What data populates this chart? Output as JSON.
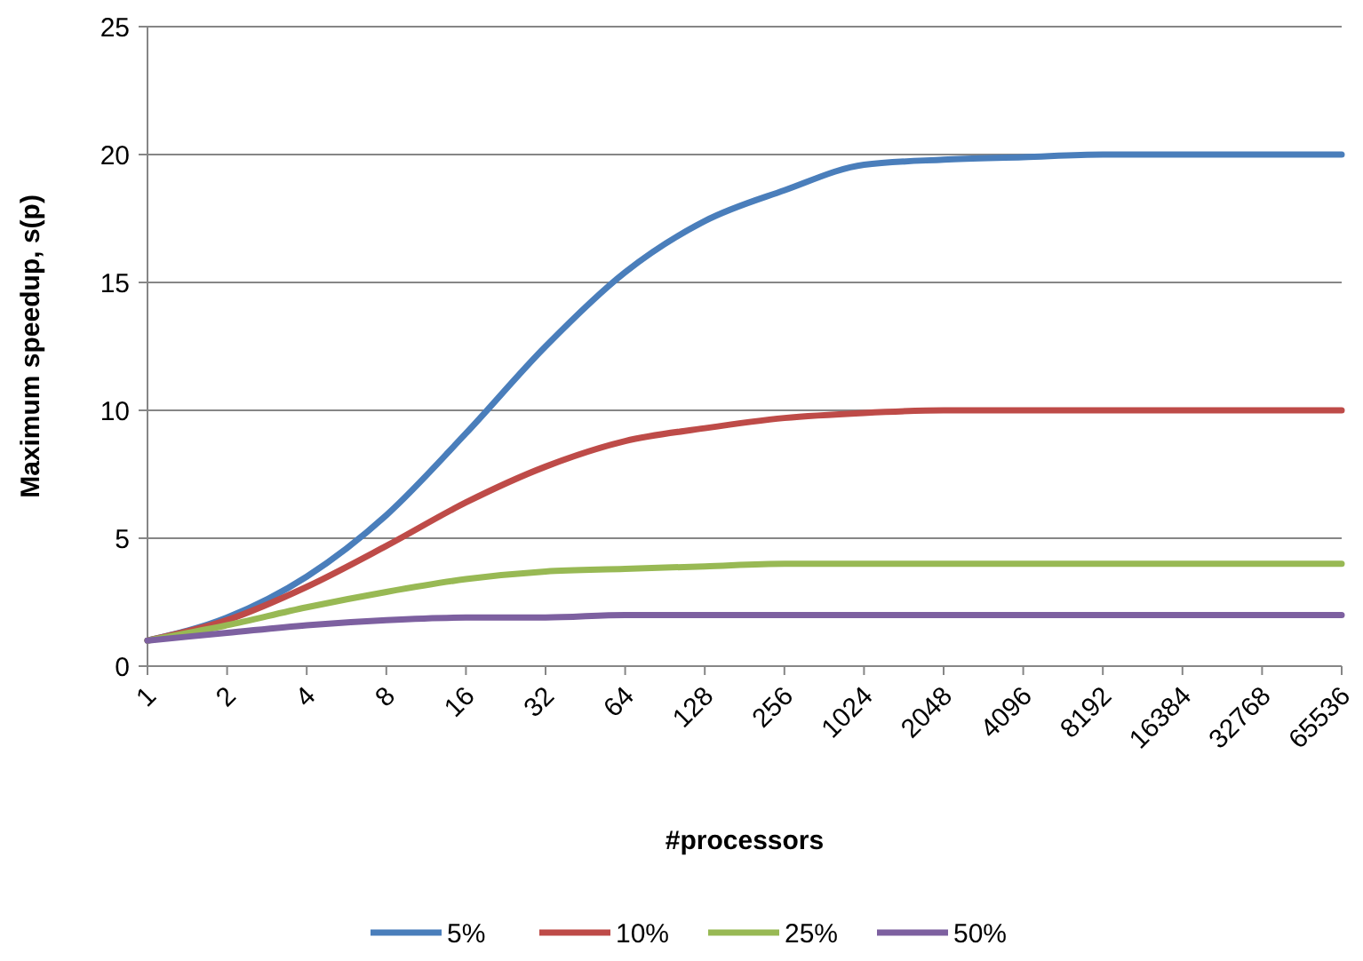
{
  "chart_data": {
    "type": "line",
    "xlabel": "#processors",
    "ylabel": "Maximum speedup, s(p)",
    "categories": [
      "1",
      "2",
      "4",
      "8",
      "16",
      "32",
      "64",
      "128",
      "256",
      "1024",
      "2048",
      "4096",
      "8192",
      "16384",
      "32768",
      "65536"
    ],
    "series": [
      {
        "name": "5%",
        "color": "#4a7ebb",
        "values": [
          1,
          1.9,
          3.5,
          5.9,
          9.1,
          12.5,
          15.4,
          17.4,
          18.6,
          19.6,
          19.8,
          19.9,
          20,
          20,
          20,
          20
        ]
      },
      {
        "name": "10%",
        "color": "#be4b48",
        "values": [
          1,
          1.8,
          3.1,
          4.7,
          6.4,
          7.8,
          8.8,
          9.3,
          9.7,
          9.9,
          10,
          10,
          10,
          10,
          10,
          10
        ]
      },
      {
        "name": "25%",
        "color": "#98b954",
        "values": [
          1,
          1.6,
          2.3,
          2.9,
          3.4,
          3.7,
          3.8,
          3.9,
          4,
          4,
          4,
          4,
          4,
          4,
          4,
          4
        ]
      },
      {
        "name": "50%",
        "color": "#7d60a0",
        "values": [
          1,
          1.3,
          1.6,
          1.8,
          1.9,
          1.9,
          2,
          2,
          2,
          2,
          2,
          2,
          2,
          2,
          2,
          2
        ]
      }
    ],
    "ylim": [
      0,
      25
    ],
    "yticks": [
      0,
      5,
      10,
      15,
      20,
      25
    ],
    "grid": "y",
    "legend": "bottom",
    "marker": "none",
    "line_style": "solid"
  }
}
